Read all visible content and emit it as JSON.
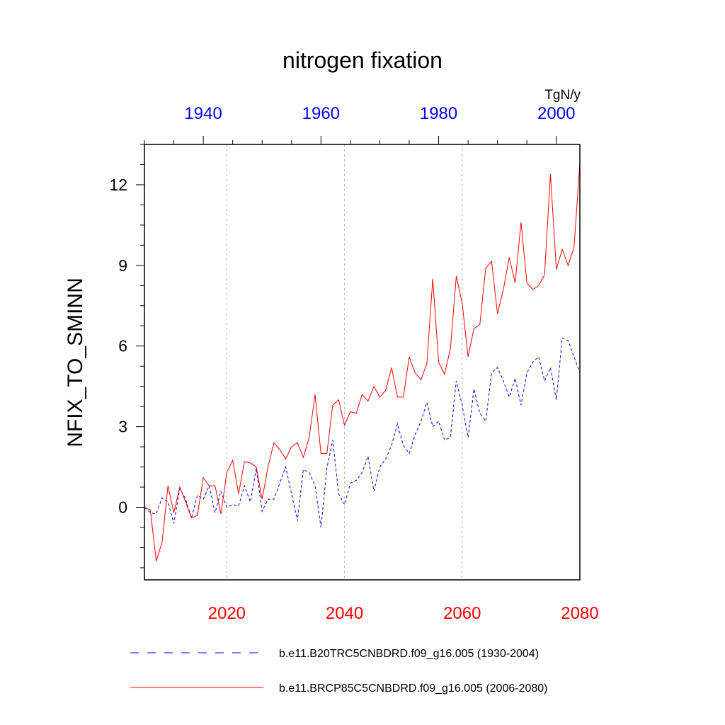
{
  "chart_data": {
    "type": "line",
    "title": "nitrogen fixation",
    "units": "TgN/y",
    "ylabel": "NFIX_TO_SMINN",
    "ylim": [
      -2.7,
      13.5
    ],
    "yticks": [
      0,
      3,
      6,
      9,
      12
    ],
    "yminor_step": 0.75,
    "grid_x_bottom": [
      2020,
      2040,
      2060
    ],
    "colors": {
      "series1": "#0000ff",
      "series2": "#ff0000",
      "top_ticks": "#0000ff",
      "bottom_ticks": "#ff0000"
    },
    "top_axis": {
      "range": [
        1930,
        2004
      ],
      "ticks": [
        1940,
        1960,
        1980,
        2000
      ],
      "minor_step": 5
    },
    "bottom_axis": {
      "range": [
        2006,
        2080
      ],
      "ticks": [
        2020,
        2040,
        2060,
        2080
      ],
      "minor_step": 5
    },
    "series": [
      {
        "name": "b.e11.B20TRC5CNBDRD.f09_g16.005 (1930-2004)",
        "axis": "top",
        "style": "dashed",
        "x_start": 1930,
        "values": [
          0.0,
          -0.2,
          -0.25,
          0.35,
          0.2,
          -0.6,
          0.7,
          0.3,
          -0.4,
          0.45,
          0.3,
          0.8,
          -0.2,
          0.6,
          0.0,
          0.1,
          0.05,
          0.8,
          0.2,
          1.45,
          -0.15,
          0.3,
          0.3,
          0.9,
          1.5,
          0.5,
          -0.5,
          1.4,
          1.3,
          0.8,
          -0.75,
          1.45,
          2.5,
          0.5,
          0.1,
          0.9,
          1.0,
          1.3,
          1.9,
          0.6,
          1.5,
          1.8,
          2.3,
          3.1,
          2.3,
          2.0,
          2.7,
          3.2,
          3.9,
          3.0,
          3.2,
          2.5,
          2.6,
          4.7,
          3.8,
          2.6,
          4.4,
          3.5,
          3.2,
          5.0,
          5.2,
          4.7,
          4.1,
          4.8,
          3.8,
          5.0,
          5.4,
          5.6,
          4.7,
          5.2,
          4.0,
          6.3,
          6.2,
          5.6,
          5.0
        ]
      },
      {
        "name": "b.e11.BRCP85C5CNBDRD.f09_g16.005 (2006-2080)",
        "axis": "bottom",
        "style": "solid",
        "x_start": 2006,
        "values": [
          0.0,
          -0.1,
          -2.0,
          -1.3,
          0.8,
          -0.2,
          0.75,
          0.2,
          -0.4,
          -0.3,
          1.1,
          0.8,
          0.8,
          -0.25,
          1.3,
          1.75,
          0.5,
          1.7,
          1.65,
          1.5,
          0.3,
          1.5,
          2.4,
          2.15,
          1.8,
          2.25,
          2.4,
          1.85,
          2.6,
          4.2,
          2.0,
          2.0,
          3.8,
          4.0,
          3.05,
          3.55,
          3.5,
          4.2,
          3.95,
          4.5,
          4.1,
          4.35,
          5.2,
          4.1,
          4.1,
          5.6,
          5.0,
          4.75,
          5.35,
          8.5,
          5.4,
          4.95,
          5.9,
          8.6,
          7.6,
          5.6,
          6.65,
          6.8,
          8.9,
          9.15,
          7.2,
          8.1,
          9.3,
          8.35,
          10.6,
          8.35,
          8.1,
          8.25,
          8.65,
          12.4,
          8.85,
          9.6,
          9.0,
          9.65,
          12.8
        ]
      }
    ]
  }
}
